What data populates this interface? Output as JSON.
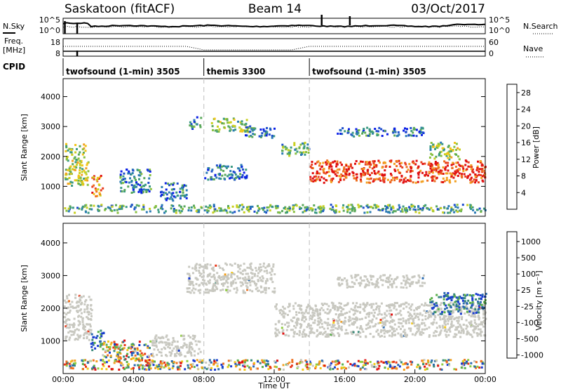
{
  "header": {
    "title_left": "Saskatoon (fitACF)",
    "title_center": "Beam 14",
    "title_right": "03/Oct/2017"
  },
  "status_panel": {
    "left_label": "N.Sky",
    "left_ticks": [
      "10^5",
      "10^0"
    ],
    "right_label": "N.Search",
    "right_ticks": [
      "10^5",
      "10^0"
    ]
  },
  "freq_panel": {
    "left_label_1": "Freq.",
    "left_label_2": "[MHz]",
    "left_ticks": [
      "18",
      "8"
    ],
    "right_label": "Nave",
    "right_ticks": [
      "60",
      "0"
    ]
  },
  "cpid": {
    "label": "CPID",
    "segments": [
      {
        "name": "twofsound (1-min) 3505",
        "start_hour": 0.0
      },
      {
        "name": "themis 3300",
        "start_hour": 8.0
      },
      {
        "name": "twofsound (1-min) 3505",
        "start_hour": 14.0
      }
    ]
  },
  "chart_data": [
    {
      "type": "heatmap",
      "panel": "power",
      "ylabel": "Slant Range [km]",
      "xlim": [
        0,
        24
      ],
      "ylim": [
        0,
        4600
      ],
      "yticks": [
        "1000",
        "2000",
        "3000",
        "4000"
      ],
      "colorbar": {
        "label": "Power [dB]",
        "ticks": [
          "4",
          "8",
          "12",
          "16",
          "20",
          "24",
          "28"
        ],
        "colors": [
          "#0a1fe6",
          "#1e4ecc",
          "#2a7ab4",
          "#3a9a82",
          "#5aa85a",
          "#88c040",
          "#c8d020",
          "#f2c418",
          "#f2a020",
          "#ee7020",
          "#e84020",
          "#e01010"
        ]
      },
      "echo_bands": [
        {
          "t": [
            0.05,
            1.4
          ],
          "r": [
            1050,
            2450
          ],
          "intensity": 0.5
        },
        {
          "t": [
            1.6,
            2.2
          ],
          "r": [
            700,
            1400
          ],
          "intensity": 0.75
        },
        {
          "t": [
            3.2,
            5.0
          ],
          "r": [
            800,
            1600
          ],
          "intensity": 0.25
        },
        {
          "t": [
            5.5,
            7.0
          ],
          "r": [
            550,
            1150
          ],
          "intensity": 0.2
        },
        {
          "t": [
            7.1,
            7.8
          ],
          "r": [
            2950,
            3350
          ],
          "intensity": 0.2
        },
        {
          "t": [
            8.4,
            10.5
          ],
          "r": [
            2850,
            3300
          ],
          "intensity": 0.45
        },
        {
          "t": [
            10.3,
            12.0
          ],
          "r": [
            2650,
            3050
          ],
          "intensity": 0.25
        },
        {
          "t": [
            8.0,
            10.4
          ],
          "r": [
            1250,
            1750
          ],
          "intensity": 0.2
        },
        {
          "t": [
            12.4,
            14.0
          ],
          "r": [
            2050,
            2500
          ],
          "intensity": 0.35
        },
        {
          "t": [
            14.0,
            24.0
          ],
          "r": [
            1150,
            1900
          ],
          "intensity": 0.9
        },
        {
          "t": [
            15.5,
            20.5
          ],
          "r": [
            2700,
            3000
          ],
          "intensity": 0.2
        },
        {
          "t": [
            20.8,
            22.5
          ],
          "r": [
            1900,
            2500
          ],
          "intensity": 0.45
        },
        {
          "t": [
            0.0,
            24.0
          ],
          "r": [
            150,
            420
          ],
          "intensity": 0.35
        }
      ]
    },
    {
      "type": "heatmap",
      "panel": "velocity",
      "ylabel": "Slant Range [km]",
      "xlabel": "Time UT",
      "xlim": [
        0,
        24
      ],
      "ylim": [
        0,
        4600
      ],
      "xticks": [
        "00:00",
        "04:00",
        "08:00",
        "12:00",
        "16:00",
        "20:00",
        "00:00"
      ],
      "yticks": [
        "1000",
        "2000",
        "3000",
        "4000"
      ],
      "colorbar": {
        "label": "Velocity [m s⁻¹]",
        "ticks": [
          "1000",
          "500",
          "100",
          "25",
          "-25",
          "-100",
          "-500",
          "-1000"
        ],
        "colors": [
          "#1a3cd0",
          "#2a6ab0",
          "#3a8a7a",
          "#5ab04a",
          "#90cc40",
          "#c8c8c0",
          "#f2c818",
          "#f2a020",
          "#ee7020",
          "#e83818",
          "#e01010"
        ]
      },
      "echo_bands": [
        {
          "t": [
            0.0,
            1.6
          ],
          "r": [
            1050,
            2450
          ],
          "class": "ground"
        },
        {
          "t": [
            1.5,
            2.3
          ],
          "r": [
            750,
            1350
          ],
          "class": "positive"
        },
        {
          "t": [
            2.2,
            5.0
          ],
          "r": [
            450,
            1050
          ],
          "class": "mixed"
        },
        {
          "t": [
            5.0,
            7.8
          ],
          "r": [
            550,
            1200
          ],
          "class": "ground"
        },
        {
          "t": [
            7.0,
            12.0
          ],
          "r": [
            2500,
            3400
          ],
          "class": "ground"
        },
        {
          "t": [
            12.0,
            24.0
          ],
          "r": [
            1150,
            2200
          ],
          "class": "ground"
        },
        {
          "t": [
            15.5,
            20.5
          ],
          "r": [
            2650,
            3050
          ],
          "class": "ground"
        },
        {
          "t": [
            20.8,
            24.0
          ],
          "r": [
            1850,
            2500
          ],
          "class": "positive"
        },
        {
          "t": [
            0.0,
            24.0
          ],
          "r": [
            150,
            450
          ],
          "class": "mixed"
        }
      ]
    }
  ]
}
